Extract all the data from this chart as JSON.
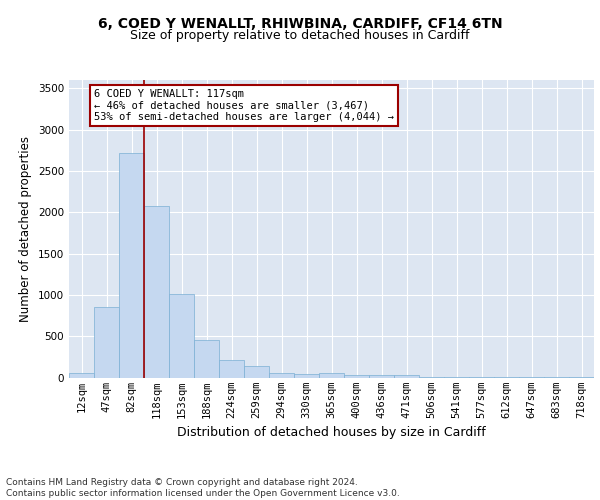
{
  "title1": "6, COED Y WENALLT, RHIWBINA, CARDIFF, CF14 6TN",
  "title2": "Size of property relative to detached houses in Cardiff",
  "xlabel": "Distribution of detached houses by size in Cardiff",
  "ylabel": "Number of detached properties",
  "categories": [
    "12sqm",
    "47sqm",
    "82sqm",
    "118sqm",
    "153sqm",
    "188sqm",
    "224sqm",
    "259sqm",
    "294sqm",
    "330sqm",
    "365sqm",
    "400sqm",
    "436sqm",
    "471sqm",
    "506sqm",
    "541sqm",
    "577sqm",
    "612sqm",
    "647sqm",
    "683sqm",
    "718sqm"
  ],
  "values": [
    60,
    850,
    2720,
    2080,
    1010,
    450,
    210,
    140,
    60,
    45,
    50,
    35,
    35,
    25,
    5,
    5,
    5,
    5,
    5,
    5,
    5
  ],
  "bar_color": "#c5d8f0",
  "bar_edge_color": "#7aafd4",
  "vline_color": "#9b0000",
  "annotation_box_text": "6 COED Y WENALLT: 117sqm\n← 46% of detached houses are smaller (3,467)\n53% of semi-detached houses are larger (4,044) →",
  "annotation_box_color": "#9b0000",
  "annotation_box_bg": "#ffffff",
  "ylim": [
    0,
    3600
  ],
  "yticks": [
    0,
    500,
    1000,
    1500,
    2000,
    2500,
    3000,
    3500
  ],
  "bg_color": "#dde6f2",
  "footnote": "Contains HM Land Registry data © Crown copyright and database right 2024.\nContains public sector information licensed under the Open Government Licence v3.0.",
  "title1_fontsize": 10,
  "title2_fontsize": 9,
  "xlabel_fontsize": 9,
  "ylabel_fontsize": 8.5,
  "tick_fontsize": 7.5,
  "footnote_fontsize": 6.5
}
